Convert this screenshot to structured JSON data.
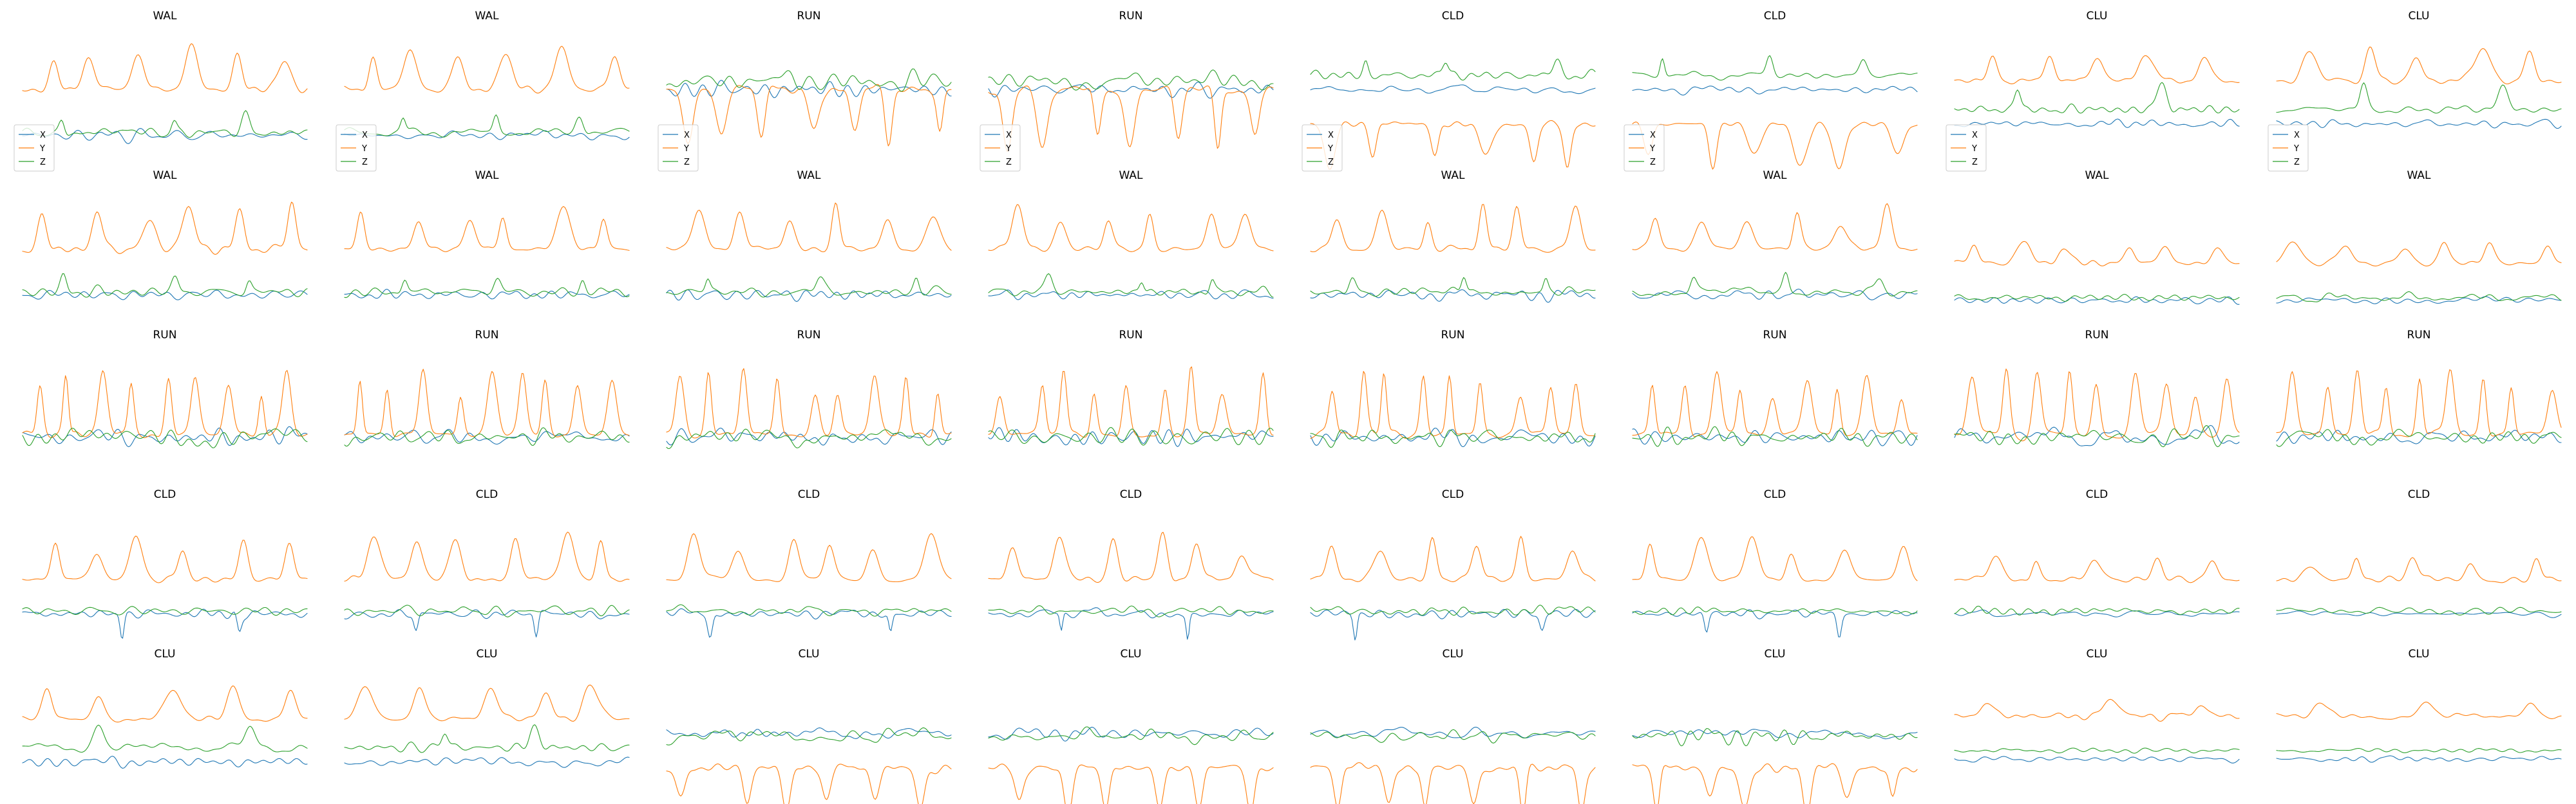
{
  "chart_data": {
    "type": "line",
    "layout": {
      "rows": 5,
      "cols": 8
    },
    "series_names": [
      "X",
      "Y",
      "Z"
    ],
    "colors": {
      "X": "#1f77b4",
      "Y": "#ff7f0e",
      "Z": "#2ca02c"
    },
    "axes_visible": false,
    "grid": false,
    "legend": {
      "placement": "lower-left",
      "shown_on_row": 0
    },
    "panels": [
      {
        "title": "WAL",
        "profile": "wal",
        "seed": 11
      },
      {
        "title": "WAL",
        "profile": "wal",
        "seed": 12
      },
      {
        "title": "RUN",
        "profile": "run2",
        "seed": 13
      },
      {
        "title": "RUN",
        "profile": "run2",
        "seed": 14
      },
      {
        "title": "CLD",
        "profile": "cld2",
        "seed": 15
      },
      {
        "title": "CLD",
        "profile": "cld2",
        "seed": 16
      },
      {
        "title": "CLU",
        "profile": "clu",
        "seed": 17
      },
      {
        "title": "CLU",
        "profile": "clu",
        "seed": 18
      },
      {
        "title": "WAL",
        "profile": "wal",
        "seed": 21
      },
      {
        "title": "WAL",
        "profile": "wal",
        "seed": 22
      },
      {
        "title": "WAL",
        "profile": "wal",
        "seed": 23
      },
      {
        "title": "WAL",
        "profile": "wal",
        "seed": 24
      },
      {
        "title": "WAL",
        "profile": "wal",
        "seed": 25
      },
      {
        "title": "WAL",
        "profile": "wal",
        "seed": 26
      },
      {
        "title": "WAL",
        "profile": "walq",
        "seed": 27
      },
      {
        "title": "WAL",
        "profile": "walq",
        "seed": 28
      },
      {
        "title": "RUN",
        "profile": "run",
        "seed": 31
      },
      {
        "title": "RUN",
        "profile": "run",
        "seed": 32
      },
      {
        "title": "RUN",
        "profile": "run",
        "seed": 33
      },
      {
        "title": "RUN",
        "profile": "run",
        "seed": 34
      },
      {
        "title": "RUN",
        "profile": "run",
        "seed": 35
      },
      {
        "title": "RUN",
        "profile": "run",
        "seed": 36
      },
      {
        "title": "RUN",
        "profile": "run",
        "seed": 37
      },
      {
        "title": "RUN",
        "profile": "run",
        "seed": 38
      },
      {
        "title": "CLD",
        "profile": "cld",
        "seed": 41
      },
      {
        "title": "CLD",
        "profile": "cld",
        "seed": 42
      },
      {
        "title": "CLD",
        "profile": "cld",
        "seed": 43
      },
      {
        "title": "CLD",
        "profile": "cld",
        "seed": 44
      },
      {
        "title": "CLD",
        "profile": "cld",
        "seed": 45
      },
      {
        "title": "CLD",
        "profile": "cld",
        "seed": 46
      },
      {
        "title": "CLD",
        "profile": "cldq",
        "seed": 47
      },
      {
        "title": "CLD",
        "profile": "cldq",
        "seed": 48
      },
      {
        "title": "CLU",
        "profile": "clu",
        "seed": 51
      },
      {
        "title": "CLU",
        "profile": "clu",
        "seed": 52
      },
      {
        "title": "CLU",
        "profile": "clu2",
        "seed": 53
      },
      {
        "title": "CLU",
        "profile": "clu2",
        "seed": 54
      },
      {
        "title": "CLU",
        "profile": "clu2",
        "seed": 55
      },
      {
        "title": "CLU",
        "profile": "clu2",
        "seed": 56
      },
      {
        "title": "CLU",
        "profile": "cluq",
        "seed": 57
      },
      {
        "title": "CLU",
        "profile": "cluq",
        "seed": 58
      }
    ]
  }
}
